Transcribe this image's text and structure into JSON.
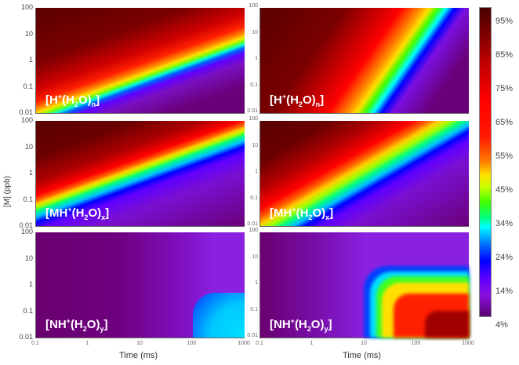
{
  "chart_data": [
    {
      "type": "heatmap",
      "panel": "top-left",
      "label_text": "[H+(H2O)n]",
      "label_parts": {
        "pre": "[H",
        "sup": "+",
        "mid": "(H",
        "sub1": "2",
        "mid2": "O)",
        "sub2": "n",
        "post": "]"
      },
      "xlabel": "",
      "ylabel": "",
      "x_scale": "log",
      "y_scale": "log",
      "xlim": [
        0.1,
        1000
      ],
      "ylim": [
        0.01,
        100
      ],
      "description": "High fraction (dark red) at low [M]/short time; diagonal rainbow band descending from ~0.5 ms at 100 ppb to ~0.2 ppb at 1000 ms; purple (low) top-right"
    },
    {
      "type": "heatmap",
      "panel": "top-right",
      "label_text": "[H+(H2O)n]",
      "label_parts": {
        "pre": "[H",
        "sup": "+",
        "mid": "(H",
        "sub1": "2",
        "mid2": "O)",
        "sub2": "n",
        "post": "]"
      },
      "x_scale": "log",
      "y_scale": "log",
      "xlim": [
        0.1,
        1000
      ],
      "ylim": [
        0.01,
        100
      ],
      "description": "Dark red lower-left; band descending diagonally then turning vertical near 30-100 ms at low [M]; purple to the right"
    },
    {
      "type": "heatmap",
      "panel": "middle-left",
      "label_text": "[MH+(H2O)x]",
      "label_parts": {
        "pre": "[MH",
        "sup": "+",
        "mid": "(H",
        "sub1": "2",
        "mid2": "O)",
        "sub2": "x",
        "post": "]"
      },
      "x_scale": "log",
      "y_scale": "log",
      "xlim": [
        0.1,
        1000
      ],
      "ylim": [
        0.01,
        100
      ],
      "description": "Dark red upper-right; rainbow band descending from 100 ppb at 0.1 ms to ~0.1 ppb plateau past 200 ms; purple below"
    },
    {
      "type": "heatmap",
      "panel": "middle-right",
      "label_text": "[MH+(H2O)x]",
      "label_parts": {
        "pre": "[MH",
        "sup": "+",
        "mid": "(H",
        "sub1": "2",
        "mid2": "O)",
        "sub2": "x",
        "post": "]"
      },
      "x_scale": "log",
      "y_scale": "log",
      "xlim": [
        0.1,
        1000
      ],
      "ylim": [
        0.01,
        100
      ],
      "description": "Dark red upper-right; band descending then plateauing around 0.3-1 ppb past 100 ms; purple below"
    },
    {
      "type": "heatmap",
      "panel": "bottom-left",
      "label_text": "[NH+(H2O)y]",
      "label_parts": {
        "pre": "[NH",
        "sup": "+",
        "mid": "(H",
        "sub1": "2",
        "mid2": "O)",
        "sub2": "y",
        "post": "]"
      },
      "x_scale": "log",
      "y_scale": "log",
      "xlim": [
        0.1,
        1000
      ],
      "ylim": [
        0.01,
        100
      ],
      "xlabel": "Time (ms)",
      "description": "Mostly purple; blue-cyan region (~15-24%) for t > 100 ms and [M] < 0.5 ppb"
    },
    {
      "type": "heatmap",
      "panel": "bottom-right",
      "label_text": "[NH+(H2O)y]",
      "label_parts": {
        "pre": "[NH",
        "sup": "+",
        "mid": "(H",
        "sub1": "2",
        "mid2": "O)",
        "sub2": "y",
        "post": "]"
      },
      "x_scale": "log",
      "y_scale": "log",
      "xlim": [
        0.1,
        1000
      ],
      "ylim": [
        0.01,
        100
      ],
      "xlabel": "Time (ms)",
      "description": "Purple left/top; rectangular rainbow corner starting ~8 ms and below ~5 ppb, dark red at t > 200 ms, [M] < 0.1 ppb"
    }
  ],
  "axes": {
    "ylabel": "[M] (ppb)",
    "xlabel": "Time (ms)",
    "y_ticks": [
      "100",
      "10",
      "1",
      "0.1",
      "0.01"
    ],
    "x_ticks": [
      "0.1",
      "1",
      "10",
      "100",
      "1000"
    ]
  },
  "colorbar": {
    "ticks": [
      "95%",
      "85%",
      "75%",
      "65%",
      "55%",
      "45%",
      "34%",
      "24%",
      "14%",
      "4%"
    ],
    "colors": [
      "#5a0000",
      "#8b0000",
      "#d00000",
      "#ff0000",
      "#ff4000",
      "#ff9000",
      "#ffd000",
      "#e0ff00",
      "#80ff00",
      "#00ff20",
      "#00ffd0",
      "#00c0ff",
      "#0060ff",
      "#0000ff",
      "#6000ff",
      "#8a00e0",
      "#6e0080"
    ]
  }
}
